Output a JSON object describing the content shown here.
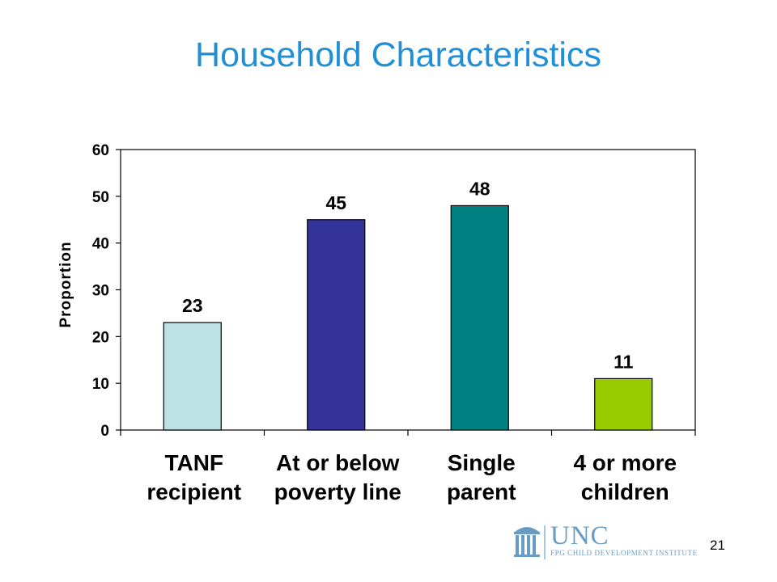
{
  "slide": {
    "title": "Household Characteristics",
    "page_number": "21"
  },
  "logo": {
    "name": "UNC",
    "subtitle": "FPG CHILD DEVELOPMENT INSTITUTE"
  },
  "chart_data": {
    "type": "bar",
    "title": "",
    "xlabel": "",
    "ylabel": "Proportion",
    "ylim": [
      0,
      60
    ],
    "yticks": [
      0,
      10,
      20,
      30,
      40,
      50,
      60
    ],
    "grid": false,
    "categories": [
      [
        "TANF",
        "recipient"
      ],
      [
        "At or below",
        "poverty line"
      ],
      [
        "Single",
        "parent"
      ],
      [
        "4 or more",
        "children"
      ]
    ],
    "values": [
      23,
      45,
      48,
      11
    ],
    "data_labels": [
      "23",
      "45",
      "48",
      "11"
    ],
    "colors": [
      "#bde1e5",
      "#333399",
      "#008080",
      "#99cc00"
    ]
  }
}
